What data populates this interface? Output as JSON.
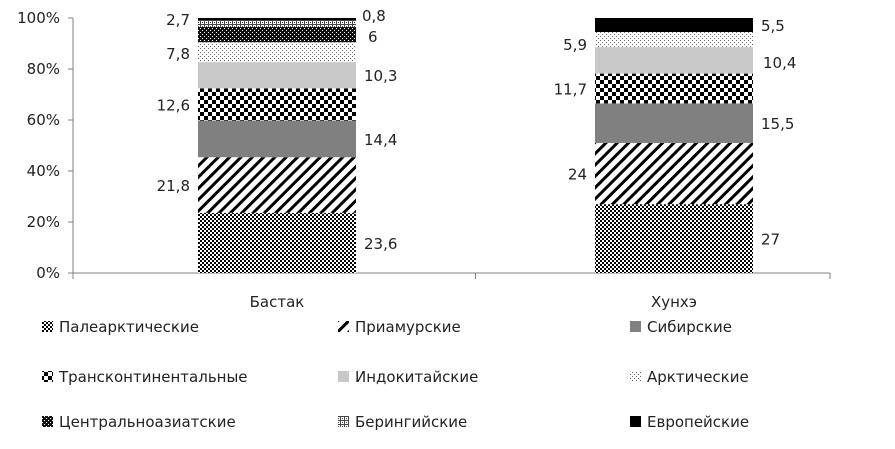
{
  "chart_data": {
    "type": "bar",
    "stacked": "percent",
    "categories": [
      "Бастак",
      "Хунхэ"
    ],
    "yticks": [
      "0%",
      "20%",
      "40%",
      "60%",
      "80%",
      "100%"
    ],
    "ylim": [
      0,
      100
    ],
    "legend_position": "bottom",
    "series": [
      {
        "name": "Палеарктические",
        "values": [
          23.6,
          27
        ],
        "labels": [
          "23,6",
          "27"
        ],
        "pattern": "checker-fine"
      },
      {
        "name": "Приамурские",
        "values": [
          21.8,
          24
        ],
        "labels": [
          "21,8",
          "24"
        ],
        "pattern": "diagonal"
      },
      {
        "name": "Сибирские",
        "values": [
          14.4,
          15.5
        ],
        "labels": [
          "14,4",
          "15,5"
        ],
        "pattern": "solid-gray"
      },
      {
        "name": "Трансконтинентальные",
        "values": [
          12.6,
          11.7
        ],
        "labels": [
          "12,6",
          "11,7"
        ],
        "pattern": "checker-large"
      },
      {
        "name": "Индокитайские",
        "values": [
          10.3,
          10.4
        ],
        "labels": [
          "10,3",
          "10,4"
        ],
        "pattern": "light-gray"
      },
      {
        "name": "Арктические",
        "values": [
          7.8,
          5.9
        ],
        "labels": [
          "7,8",
          "5,9"
        ],
        "pattern": "dots"
      },
      {
        "name": "Центральноазиатские",
        "values": [
          6,
          0
        ],
        "labels": [
          "6",
          ""
        ],
        "pattern": "dark-checker"
      },
      {
        "name": "Берингийские",
        "values": [
          2.7,
          0
        ],
        "labels": [
          "2,7",
          ""
        ],
        "pattern": "grid"
      },
      {
        "name": "Европейские",
        "values": [
          0.8,
          5.5
        ],
        "labels": [
          "0,8",
          "5,5"
        ],
        "pattern": "black"
      }
    ],
    "colors": {
      "axis": "#808080",
      "text": "#222222",
      "solid_gray": "#808080",
      "light_gray": "#c8c8c8",
      "black": "#000000"
    }
  }
}
